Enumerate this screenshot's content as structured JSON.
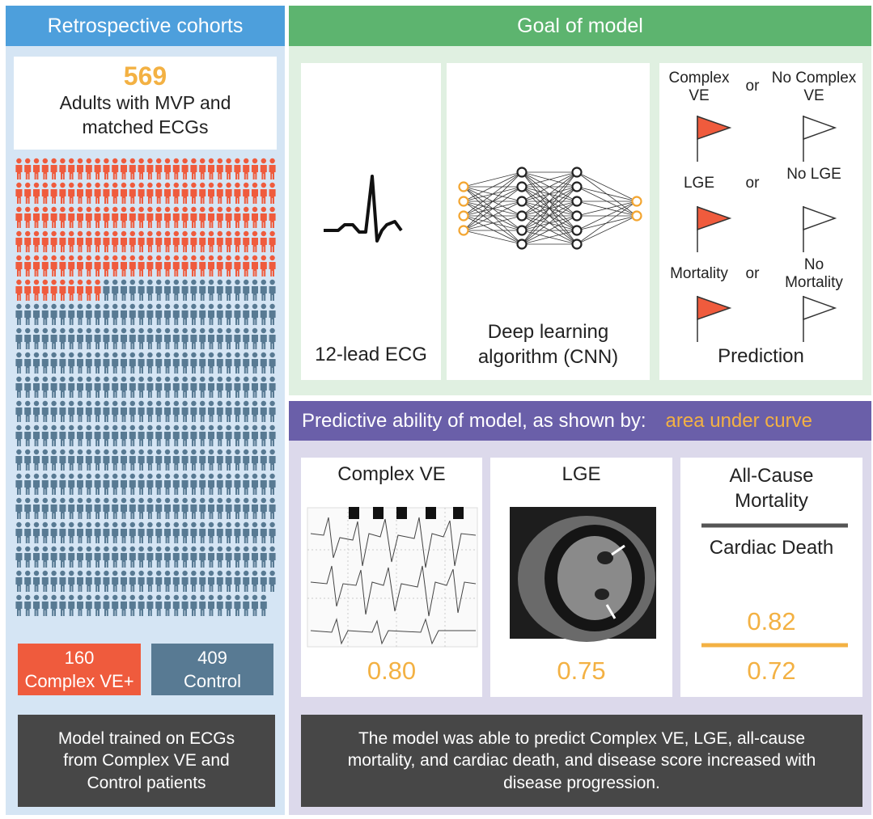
{
  "left": {
    "header": "Retrospective cohorts",
    "total": 569,
    "total_label": "Adults with MVP and matched ECGs",
    "groups": [
      {
        "count": 160,
        "label": "Complex VE+",
        "color": "#ef5b3d"
      },
      {
        "count": 409,
        "label": "Control",
        "color": "#587a93"
      }
    ],
    "note": "Model trained on ECGs from Complex VE and Control patients"
  },
  "goal": {
    "header": "Goal of model",
    "panels": [
      "12-lead ECG",
      "Deep learning algorithm (CNN)",
      "Prediction"
    ],
    "predictions": [
      {
        "positive": "Complex VE",
        "joiner": "or",
        "negative": "No Complex VE"
      },
      {
        "positive": "LGE",
        "joiner": "or",
        "negative": "No LGE"
      },
      {
        "positive": "Mortality",
        "joiner": "or",
        "negative": "No Mortality"
      }
    ]
  },
  "results": {
    "header": "Predictive ability of model, as shown by:",
    "highlight": "area under curve",
    "panels": [
      {
        "title": "Complex VE",
        "auc": "0.80"
      },
      {
        "title": "LGE",
        "auc": "0.75"
      },
      {
        "title": "All-Cause Mortality",
        "auc": "0.82",
        "subtitle": "Cardiac Death",
        "sub_auc": "0.72"
      }
    ],
    "note": "The model was able to predict Complex VE, LGE, all-cause mortality, and cardiac death, and disease score increased with disease progression."
  }
}
